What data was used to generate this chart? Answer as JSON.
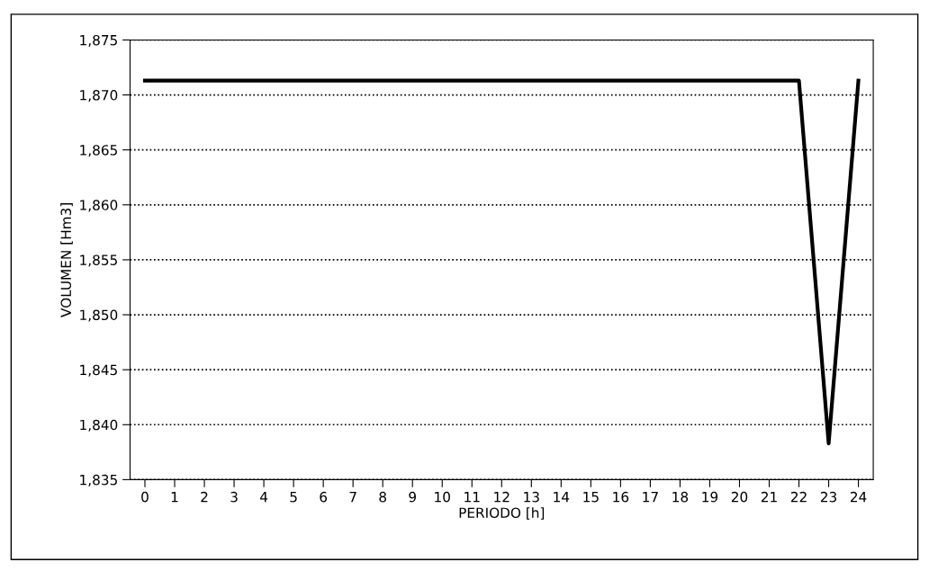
{
  "chart_data": {
    "type": "line",
    "xlabel": "PERIODO [h]",
    "ylabel": "VOLUMEN [Hm3]",
    "x": [
      0,
      22,
      23,
      24
    ],
    "series": [
      {
        "color": "#000000",
        "values": [
          1871.3,
          1871.3,
          1838.3,
          1871.3
        ]
      }
    ],
    "xlim": [
      -0.5,
      24.5
    ],
    "xticks": [
      0,
      1,
      2,
      3,
      4,
      5,
      6,
      7,
      8,
      9,
      10,
      11,
      12,
      13,
      14,
      15,
      16,
      17,
      18,
      19,
      20,
      21,
      22,
      23,
      24
    ],
    "ylim": [
      1835,
      1875
    ],
    "yticks": [
      {
        "value": 1835,
        "label": "1,835"
      },
      {
        "value": 1840,
        "label": "1,840"
      },
      {
        "value": 1845,
        "label": "1,845"
      },
      {
        "value": 1850,
        "label": "1,850"
      },
      {
        "value": 1855,
        "label": "1,855"
      },
      {
        "value": 1860,
        "label": "1,860"
      },
      {
        "value": 1865,
        "label": "1,865"
      },
      {
        "value": 1870,
        "label": "1,870"
      },
      {
        "value": 1875,
        "label": "1,875"
      }
    ],
    "grid": "y",
    "marker": "none",
    "line_style": "solid"
  }
}
